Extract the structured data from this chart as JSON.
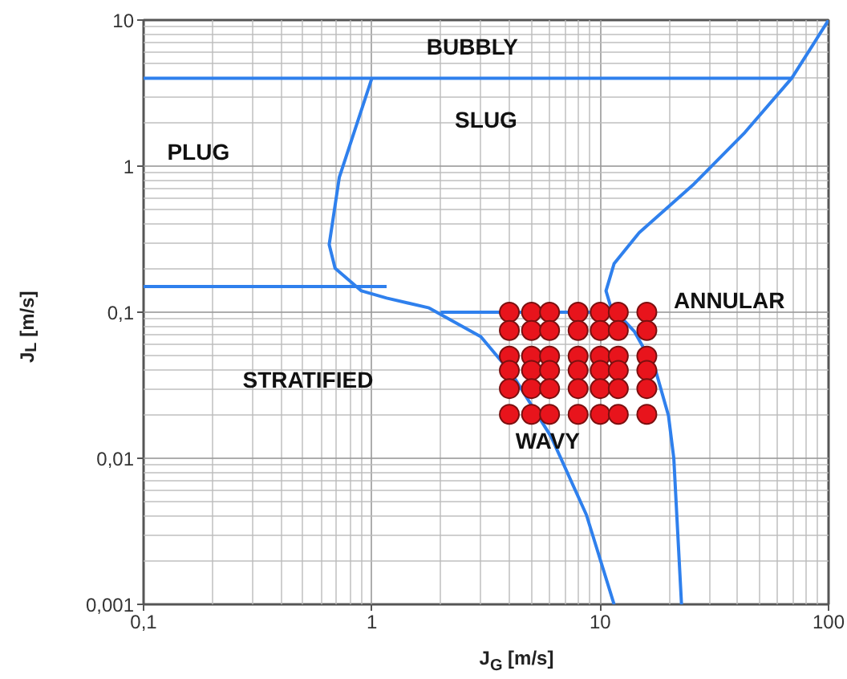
{
  "chart_data": {
    "type": "line",
    "xlabel": "J$_{G}$ [m/s]",
    "ylabel": "J$_{L}$ [m/s]",
    "log": "xy",
    "grid": true,
    "xlim": [
      0.1,
      100
    ],
    "ylim": [
      0.001,
      10
    ],
    "xticks": [
      {
        "value": 0.1,
        "label": "0,1"
      },
      1,
      10,
      100
    ],
    "yticks": [
      {
        "value": 0.001,
        "label": "0,001"
      },
      {
        "value": 0.01,
        "label": "0,01"
      },
      {
        "value": 0.1,
        "label": "0,1"
      },
      1,
      10
    ],
    "series": [
      {
        "color": "#2f80ed",
        "x": [
          0.1,
          69
        ],
        "values": [
          4,
          4
        ]
      },
      {
        "color": "#2f80ed",
        "x": [
          100,
          69,
          43,
          25.4,
          14.8,
          11.5,
          10.6,
          11.1,
          14.1,
          17.4,
          19.9,
          21,
          22.7
        ],
        "values": [
          10,
          4,
          1.7,
          0.74,
          0.35,
          0.215,
          0.14,
          0.11,
          0.074,
          0.041,
          0.0196,
          0.01,
          0.001
        ]
      },
      {
        "color": "#2f80ed",
        "x": [
          1.0,
          0.72,
          0.65,
          0.69,
          0.9,
          1.16,
          1.78,
          3.0,
          4.1,
          6.1,
          8.7,
          11.5
        ],
        "values": [
          4,
          0.84,
          0.29,
          0.2,
          0.14,
          0.125,
          0.107,
          0.068,
          0.038,
          0.014,
          0.0041,
          0.001
        ]
      },
      {
        "color": "#2f80ed",
        "x": [
          0.1,
          1.16
        ],
        "values": [
          0.15,
          0.15
        ]
      },
      {
        "color": "#2f80ed",
        "x": [
          2.0,
          10.6
        ],
        "values": [
          0.1,
          0.1
        ]
      },
      {
        "type": "scatter",
        "color": "#e8141c",
        "marker": "circle",
        "x": [
          4,
          5,
          6,
          8,
          10,
          12,
          16,
          4,
          5,
          6,
          8,
          10,
          12,
          16,
          4,
          5,
          6,
          8,
          10,
          12,
          16,
          4,
          5,
          6,
          8,
          10,
          12,
          16,
          4,
          5,
          6,
          8,
          10,
          12,
          16,
          4,
          5,
          6,
          8,
          10,
          12,
          16
        ],
        "values": [
          0.1,
          0.1,
          0.1,
          0.1,
          0.1,
          0.1,
          0.1,
          0.075,
          0.075,
          0.075,
          0.075,
          0.075,
          0.075,
          0.075,
          0.05,
          0.05,
          0.05,
          0.05,
          0.05,
          0.05,
          0.05,
          0.04,
          0.04,
          0.04,
          0.04,
          0.04,
          0.04,
          0.04,
          0.03,
          0.03,
          0.03,
          0.03,
          0.03,
          0.03,
          0.03,
          0.02,
          0.02,
          0.02,
          0.02,
          0.02,
          0.02,
          0.02
        ]
      }
    ],
    "annotations": [
      "BUBBLY",
      "SLUG",
      "PLUG",
      "ANNULAR",
      "STRATIFIED",
      "WAVY"
    ]
  }
}
